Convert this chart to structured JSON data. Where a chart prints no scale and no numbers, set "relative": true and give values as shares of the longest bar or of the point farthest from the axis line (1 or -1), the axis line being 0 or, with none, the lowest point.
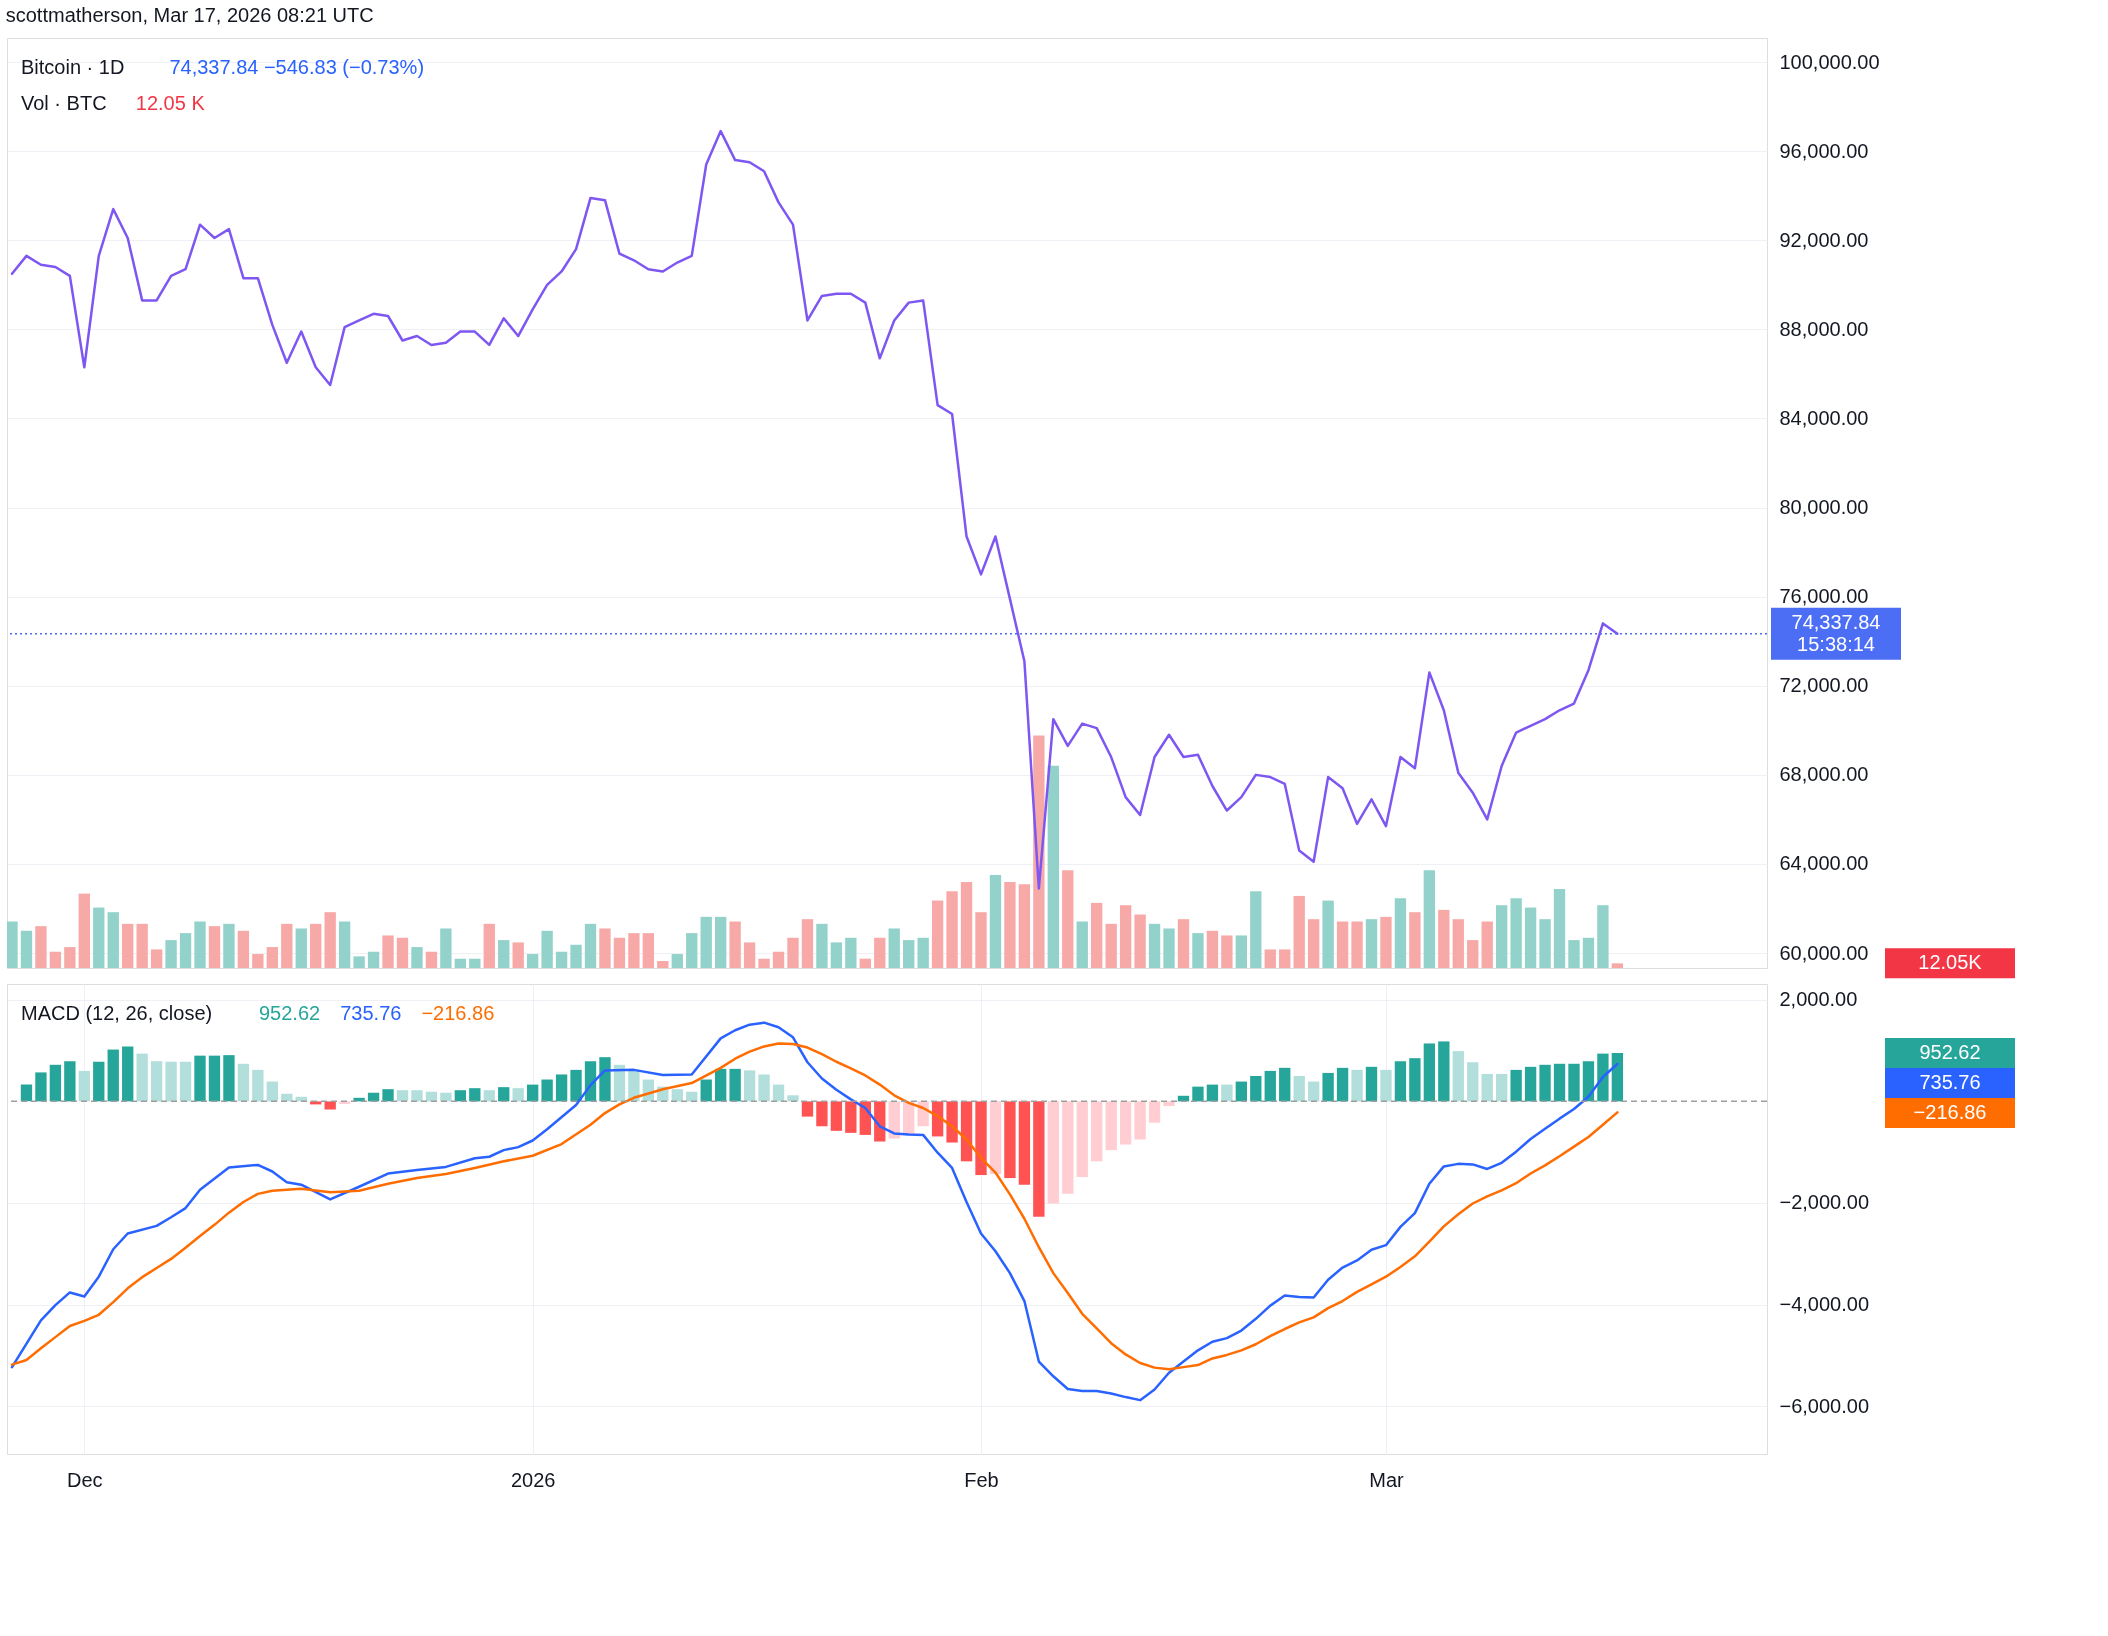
{
  "chart_data": [
    {
      "type": "line",
      "title": "Bitcoin · 1D",
      "subtitle": "74,337.84  −546.83 (−0.73%)",
      "annotations": [
        "scottmatherson, Mar 17, 2026 08:21 UTC",
        "15:38:14"
      ],
      "x": [
        "2025-11-26",
        "2025-11-27",
        "2025-11-28",
        "2025-11-29",
        "2025-11-30",
        "2025-12-01",
        "2025-12-02",
        "2025-12-03",
        "2025-12-04",
        "2025-12-05",
        "2025-12-06",
        "2025-12-07",
        "2025-12-08",
        "2025-12-09",
        "2025-12-10",
        "2025-12-11",
        "2025-12-12",
        "2025-12-13",
        "2025-12-14",
        "2025-12-15",
        "2025-12-16",
        "2025-12-17",
        "2025-12-18",
        "2025-12-19",
        "2025-12-20",
        "2025-12-21",
        "2025-12-22",
        "2025-12-23",
        "2025-12-24",
        "2025-12-25",
        "2025-12-26",
        "2025-12-27",
        "2025-12-28",
        "2025-12-29",
        "2025-12-30",
        "2025-12-31",
        "2026-01-01",
        "2026-01-02",
        "2026-01-03",
        "2026-01-04",
        "2026-01-05",
        "2026-01-06",
        "2026-01-07",
        "2026-01-08",
        "2026-01-09",
        "2026-01-10",
        "2026-01-11",
        "2026-01-12",
        "2026-01-13",
        "2026-01-14",
        "2026-01-15",
        "2026-01-16",
        "2026-01-17",
        "2026-01-18",
        "2026-01-19",
        "2026-01-20",
        "2026-01-21",
        "2026-01-22",
        "2026-01-23",
        "2026-01-24",
        "2026-01-25",
        "2026-01-26",
        "2026-01-27",
        "2026-01-28",
        "2026-01-29",
        "2026-01-30",
        "2026-01-31",
        "2026-02-01",
        "2026-02-02",
        "2026-02-03",
        "2026-02-04",
        "2026-02-05",
        "2026-02-06",
        "2026-02-07",
        "2026-02-08",
        "2026-02-09",
        "2026-02-10",
        "2026-02-11",
        "2026-02-12",
        "2026-02-13",
        "2026-02-14",
        "2026-02-15",
        "2026-02-16",
        "2026-02-17",
        "2026-02-18",
        "2026-02-19",
        "2026-02-20",
        "2026-02-21",
        "2026-02-22",
        "2026-02-23",
        "2026-02-24",
        "2026-02-25",
        "2026-02-26",
        "2026-02-27",
        "2026-02-28",
        "2026-03-01",
        "2026-03-02",
        "2026-03-03",
        "2026-03-04",
        "2026-03-05",
        "2026-03-06",
        "2026-03-07",
        "2026-03-08",
        "2026-03-09",
        "2026-03-10",
        "2026-03-11",
        "2026-03-12",
        "2026-03-13",
        "2026-03-14",
        "2026-03-15",
        "2026-03-16",
        "2026-03-17"
      ],
      "color": "#7e57f2",
      "values": [
        90500,
        91300,
        90900,
        90800,
        90400,
        86300,
        91300,
        93400,
        92100,
        89300,
        89300,
        90400,
        90700,
        92700,
        92100,
        92500,
        90300,
        90300,
        88200,
        86500,
        87900,
        86300,
        85500,
        88100,
        88400,
        88700,
        88600,
        87500,
        87700,
        87300,
        87400,
        87900,
        87900,
        87300,
        88500,
        87700,
        88900,
        90000,
        90600,
        91600,
        93900,
        93800,
        91400,
        91100,
        90700,
        90600,
        91000,
        91300,
        95400,
        96900,
        95600,
        95500,
        95100,
        93700,
        92700,
        88400,
        89500,
        89600,
        89600,
        89200,
        86700,
        88400,
        89200,
        89300,
        84600,
        84200,
        78700,
        77000,
        78700,
        75900,
        73100,
        62900,
        70500,
        69300,
        70300,
        70100,
        68800,
        67000,
        66200,
        68800,
        69800,
        68800,
        68900,
        67500,
        66400,
        67000,
        68000,
        67900,
        67600,
        64600,
        64100,
        67900,
        67400,
        65800,
        66900,
        65700,
        68800,
        68300,
        72600,
        70900,
        68100,
        67200,
        66000,
        68400,
        69900,
        70200,
        70500,
        70900,
        71200,
        72700,
        74800,
        74337.84
      ],
      "xlim": [
        "2025-11-26",
        "2026-03-27"
      ],
      "xticks": [
        {
          "value": "2025-12-01",
          "label": null
        },
        {
          "value": "2026-01-01",
          "label": null
        },
        {
          "value": "2026-02-01",
          "label": null
        },
        {
          "value": "2026-03-01",
          "label": null
        }
      ],
      "ylim": [
        59330,
        101080
      ],
      "yticks": [
        {
          "value": 60000,
          "label": "60,000.00"
        },
        {
          "value": 64000,
          "label": "64,000.00"
        },
        {
          "value": 68000,
          "label": "68,000.00"
        },
        {
          "value": 72000,
          "label": "72,000.00"
        },
        {
          "value": 76000,
          "label": "76,000.00"
        },
        {
          "value": 80000,
          "label": "80,000.00"
        },
        {
          "value": 84000,
          "label": "84,000.00"
        },
        {
          "value": 88000,
          "label": "88,000.00"
        },
        {
          "value": 92000,
          "label": "92,000.00"
        },
        {
          "value": 96000,
          "label": "96,000.00"
        },
        {
          "value": 100000,
          "label": "100,000.00"
        }
      ],
      "ref_lines": [
        {
          "axis": "y",
          "value": 74337.84,
          "label": "74,337.84",
          "color": "#4c6ef5",
          "line_style": "dotted"
        }
      ],
      "tick_labels": "y",
      "grid": true
    },
    {
      "type": "bar",
      "relative": true,
      "title": "Vol · BTC",
      "subtitle": "12.05 K",
      "annotations": [
        "12.05K"
      ],
      "xlim": [
        "2025-11-26",
        "2026-03-27"
      ],
      "xticks": [
        {
          "value": "2025-12-01",
          "label": null
        },
        {
          "value": "2026-01-01",
          "label": null
        },
        {
          "value": "2026-02-01",
          "label": null
        },
        {
          "value": "2026-03-01",
          "label": null
        }
      ],
      "tick_labels": false,
      "x": [
        "2025-11-26",
        "2025-11-27",
        "2025-11-28",
        "2025-11-29",
        "2025-11-30",
        "2025-12-01",
        "2025-12-02",
        "2025-12-03",
        "2025-12-04",
        "2025-12-05",
        "2025-12-06",
        "2025-12-07",
        "2025-12-08",
        "2025-12-09",
        "2025-12-10",
        "2025-12-11",
        "2025-12-12",
        "2025-12-13",
        "2025-12-14",
        "2025-12-15",
        "2025-12-16",
        "2025-12-17",
        "2025-12-18",
        "2025-12-19",
        "2025-12-20",
        "2025-12-21",
        "2025-12-22",
        "2025-12-23",
        "2025-12-24",
        "2025-12-25",
        "2025-12-26",
        "2025-12-27",
        "2025-12-28",
        "2025-12-29",
        "2025-12-30",
        "2025-12-31",
        "2026-01-01",
        "2026-01-02",
        "2026-01-03",
        "2026-01-04",
        "2026-01-05",
        "2026-01-06",
        "2026-01-07",
        "2026-01-08",
        "2026-01-09",
        "2026-01-10",
        "2026-01-11",
        "2026-01-12",
        "2026-01-13",
        "2026-01-14",
        "2026-01-15",
        "2026-01-16",
        "2026-01-17",
        "2026-01-18",
        "2026-01-19",
        "2026-01-20",
        "2026-01-21",
        "2026-01-22",
        "2026-01-23",
        "2026-01-24",
        "2026-01-25",
        "2026-01-26",
        "2026-01-27",
        "2026-01-28",
        "2026-01-29",
        "2026-01-30",
        "2026-01-31",
        "2026-02-01",
        "2026-02-02",
        "2026-02-03",
        "2026-02-04",
        "2026-02-05",
        "2026-02-06",
        "2026-02-07",
        "2026-02-08",
        "2026-02-09",
        "2026-02-10",
        "2026-02-11",
        "2026-02-12",
        "2026-02-13",
        "2026-02-14",
        "2026-02-15",
        "2026-02-16",
        "2026-02-17",
        "2026-02-18",
        "2026-02-19",
        "2026-02-20",
        "2026-02-21",
        "2026-02-22",
        "2026-02-23",
        "2026-02-24",
        "2026-02-25",
        "2026-02-26",
        "2026-02-27",
        "2026-02-28",
        "2026-03-01",
        "2026-03-02",
        "2026-03-03",
        "2026-03-04",
        "2026-03-05",
        "2026-03-06",
        "2026-03-07",
        "2026-03-08",
        "2026-03-09",
        "2026-03-10",
        "2026-03-11",
        "2026-03-12",
        "2026-03-13",
        "2026-03-14",
        "2026-03-15",
        "2026-03-16",
        "2026-03-17"
      ],
      "values": [
        0.2,
        0.16,
        0.18,
        0.07,
        0.09,
        0.32,
        0.26,
        0.24,
        0.19,
        0.19,
        0.08,
        0.12,
        0.15,
        0.2,
        0.18,
        0.19,
        0.16,
        0.06,
        0.09,
        0.19,
        0.17,
        0.19,
        0.24,
        0.2,
        0.05,
        0.07,
        0.14,
        0.13,
        0.09,
        0.07,
        0.17,
        0.04,
        0.04,
        0.19,
        0.12,
        0.11,
        0.06,
        0.16,
        0.07,
        0.1,
        0.19,
        0.17,
        0.13,
        0.15,
        0.15,
        0.03,
        0.06,
        0.15,
        0.22,
        0.22,
        0.2,
        0.11,
        0.04,
        0.07,
        0.13,
        0.21,
        0.19,
        0.11,
        0.13,
        0.04,
        0.13,
        0.17,
        0.12,
        0.13,
        0.29,
        0.33,
        0.37,
        0.24,
        0.4,
        0.37,
        0.36,
        1,
        0.87,
        0.42,
        0.2,
        0.28,
        0.19,
        0.27,
        0.23,
        0.19,
        0.17,
        0.21,
        0.15,
        0.16,
        0.14,
        0.14,
        0.33,
        0.08,
        0.08,
        0.31,
        0.21,
        0.29,
        0.2,
        0.2,
        0.21,
        0.22,
        0.3,
        0.24,
        0.42,
        0.25,
        0.21,
        0.12,
        0.2,
        0.27,
        0.3,
        0.26,
        0.21,
        0.34,
        0.12,
        0.13,
        0.27,
        0.02
      ],
      "colors": [
        "#92d2ca",
        "#92d2ca",
        "#f7a9a7",
        "#f7a9a7",
        "#f7a9a7",
        "#f7a9a7",
        "#92d2ca",
        "#92d2ca",
        "#f7a9a7",
        "#f7a9a7",
        "#f7a9a7",
        "#92d2ca",
        "#92d2ca",
        "#92d2ca",
        "#f7a9a7",
        "#92d2ca",
        "#f7a9a7",
        "#f7a9a7",
        "#f7a9a7",
        "#f7a9a7",
        "#92d2ca",
        "#f7a9a7",
        "#f7a9a7",
        "#92d2ca",
        "#92d2ca",
        "#92d2ca",
        "#f7a9a7",
        "#f7a9a7",
        "#92d2ca",
        "#f7a9a7",
        "#92d2ca",
        "#92d2ca",
        "#92d2ca",
        "#f7a9a7",
        "#92d2ca",
        "#f7a9a7",
        "#92d2ca",
        "#92d2ca",
        "#92d2ca",
        "#92d2ca",
        "#92d2ca",
        "#f7a9a7",
        "#f7a9a7",
        "#f7a9a7",
        "#f7a9a7",
        "#f7a9a7",
        "#92d2ca",
        "#92d2ca",
        "#92d2ca",
        "#92d2ca",
        "#f7a9a7",
        "#f7a9a7",
        "#f7a9a7",
        "#f7a9a7",
        "#f7a9a7",
        "#f7a9a7",
        "#92d2ca",
        "#92d2ca",
        "#92d2ca",
        "#f7a9a7",
        "#f7a9a7",
        "#92d2ca",
        "#92d2ca",
        "#92d2ca",
        "#f7a9a7",
        "#f7a9a7",
        "#f7a9a7",
        "#f7a9a7",
        "#92d2ca",
        "#f7a9a7",
        "#f7a9a7",
        "#f7a9a7",
        "#92d2ca",
        "#f7a9a7",
        "#92d2ca",
        "#f7a9a7",
        "#f7a9a7",
        "#f7a9a7",
        "#f7a9a7",
        "#92d2ca",
        "#92d2ca",
        "#f7a9a7",
        "#92d2ca",
        "#f7a9a7",
        "#f7a9a7",
        "#92d2ca",
        "#92d2ca",
        "#f7a9a7",
        "#f7a9a7",
        "#f7a9a7",
        "#f7a9a7",
        "#92d2ca",
        "#f7a9a7",
        "#f7a9a7",
        "#92d2ca",
        "#f7a9a7",
        "#92d2ca",
        "#f7a9a7",
        "#92d2ca",
        "#f7a9a7",
        "#f7a9a7",
        "#f7a9a7",
        "#f7a9a7",
        "#92d2ca",
        "#92d2ca",
        "#92d2ca",
        "#92d2ca",
        "#92d2ca",
        "#92d2ca",
        "#92d2ca",
        "#92d2ca",
        "#f7a9a7"
      ]
    },
    {
      "type": "bar",
      "title": "MACD (12, 26, close)",
      "annotations": [
        "952.62",
        "735.76",
        "−216.86"
      ],
      "x": [
        "2025-11-27",
        "2025-11-28",
        "2025-11-29",
        "2025-11-30",
        "2025-12-01",
        "2025-12-02",
        "2025-12-03",
        "2025-12-04",
        "2025-12-05",
        "2025-12-06",
        "2025-12-07",
        "2025-12-08",
        "2025-12-09",
        "2025-12-10",
        "2025-12-11",
        "2025-12-12",
        "2025-12-13",
        "2025-12-14",
        "2025-12-15",
        "2025-12-16",
        "2025-12-17",
        "2025-12-18",
        "2025-12-19",
        "2025-12-20",
        "2025-12-21",
        "2025-12-22",
        "2025-12-23",
        "2025-12-24",
        "2025-12-25",
        "2025-12-26",
        "2025-12-27",
        "2025-12-28",
        "2025-12-29",
        "2025-12-30",
        "2025-12-31",
        "2026-01-01",
        "2026-01-02",
        "2026-01-03",
        "2026-01-04",
        "2026-01-05",
        "2026-01-06",
        "2026-01-07",
        "2026-01-08",
        "2026-01-09",
        "2026-01-10",
        "2026-01-11",
        "2026-01-12",
        "2026-01-13",
        "2026-01-14",
        "2026-01-15",
        "2026-01-16",
        "2026-01-17",
        "2026-01-18",
        "2026-01-19",
        "2026-01-20",
        "2026-01-21",
        "2026-01-22",
        "2026-01-23",
        "2026-01-24",
        "2026-01-25",
        "2026-01-26",
        "2026-01-27",
        "2026-01-28",
        "2026-01-29",
        "2026-01-30",
        "2026-01-31",
        "2026-02-01",
        "2026-02-02",
        "2026-02-03",
        "2026-02-04",
        "2026-02-05",
        "2026-02-06",
        "2026-02-07",
        "2026-02-08",
        "2026-02-09",
        "2026-02-10",
        "2026-02-11",
        "2026-02-12",
        "2026-02-13",
        "2026-02-14",
        "2026-02-15",
        "2026-02-16",
        "2026-02-17",
        "2026-02-18",
        "2026-02-19",
        "2026-02-20",
        "2026-02-21",
        "2026-02-22",
        "2026-02-23",
        "2026-02-24",
        "2026-02-25",
        "2026-02-26",
        "2026-02-27",
        "2026-02-28",
        "2026-03-01",
        "2026-03-02",
        "2026-03-03",
        "2026-03-04",
        "2026-03-05",
        "2026-03-06",
        "2026-03-07",
        "2026-03-08",
        "2026-03-09",
        "2026-03-10",
        "2026-03-11",
        "2026-03-12",
        "2026-03-13",
        "2026-03-14",
        "2026-03-15",
        "2026-03-16",
        "2026-03-17"
      ],
      "series": [
        {
          "type": "bar",
          "values": [
            330,
            570,
            720,
            790,
            600,
            780,
            1020,
            1080,
            940,
            790,
            780,
            780,
            900,
            900,
            910,
            740,
            620,
            390,
            150,
            90,
            -60,
            -160,
            -50,
            70,
            170,
            240,
            220,
            220,
            190,
            170,
            220,
            260,
            220,
            280,
            260,
            330,
            430,
            530,
            620,
            790,
            870,
            720,
            620,
            430,
            290,
            240,
            190,
            430,
            640,
            640,
            610,
            530,
            330,
            120,
            -300,
            -490,
            -580,
            -620,
            -660,
            -790,
            -730,
            -650,
            -490,
            -690,
            -810,
            -1180,
            -1450,
            -1430,
            -1510,
            -1640,
            -2270,
            -2010,
            -1820,
            -1490,
            -1180,
            -960,
            -850,
            -750,
            -420,
            -90,
            110,
            290,
            330,
            330,
            390,
            500,
            600,
            660,
            500,
            390,
            560,
            660,
            620,
            680,
            620,
            790,
            850,
            1140,
            1180,
            990,
            770,
            540,
            540,
            620,
            680,
            720,
            740,
            740,
            790,
            940,
            952.62
          ],
          "colors": [
            "#26a69a",
            "#26a69a",
            "#26a69a",
            "#26a69a",
            "#b2dfdb",
            "#26a69a",
            "#26a69a",
            "#26a69a",
            "#b2dfdb",
            "#b2dfdb",
            "#b2dfdb",
            "#b2dfdb",
            "#26a69a",
            "#26a69a",
            "#26a69a",
            "#b2dfdb",
            "#b2dfdb",
            "#b2dfdb",
            "#b2dfdb",
            "#b2dfdb",
            "#ff5252",
            "#ff5252",
            "#ffcdd2",
            "#26a69a",
            "#26a69a",
            "#26a69a",
            "#b2dfdb",
            "#b2dfdb",
            "#b2dfdb",
            "#b2dfdb",
            "#26a69a",
            "#26a69a",
            "#b2dfdb",
            "#26a69a",
            "#b2dfdb",
            "#26a69a",
            "#26a69a",
            "#26a69a",
            "#26a69a",
            "#26a69a",
            "#26a69a",
            "#b2dfdb",
            "#b2dfdb",
            "#b2dfdb",
            "#b2dfdb",
            "#b2dfdb",
            "#b2dfdb",
            "#26a69a",
            "#26a69a",
            "#26a69a",
            "#b2dfdb",
            "#b2dfdb",
            "#b2dfdb",
            "#b2dfdb",
            "#ff5252",
            "#ff5252",
            "#ff5252",
            "#ff5252",
            "#ff5252",
            "#ff5252",
            "#ffcdd2",
            "#ffcdd2",
            "#ffcdd2",
            "#ff5252",
            "#ff5252",
            "#ff5252",
            "#ff5252",
            "#ffcdd2",
            "#ff5252",
            "#ff5252",
            "#ff5252",
            "#ffcdd2",
            "#ffcdd2",
            "#ffcdd2",
            "#ffcdd2",
            "#ffcdd2",
            "#ffcdd2",
            "#ffcdd2",
            "#ffcdd2",
            "#ffcdd2",
            "#26a69a",
            "#26a69a",
            "#26a69a",
            "#b2dfdb",
            "#26a69a",
            "#26a69a",
            "#26a69a",
            "#26a69a",
            "#b2dfdb",
            "#b2dfdb",
            "#26a69a",
            "#26a69a",
            "#b2dfdb",
            "#26a69a",
            "#b2dfdb",
            "#26a69a",
            "#26a69a",
            "#26a69a",
            "#26a69a",
            "#b2dfdb",
            "#b2dfdb",
            "#b2dfdb",
            "#b2dfdb",
            "#26a69a",
            "#26a69a",
            "#26a69a",
            "#26a69a",
            "#26a69a",
            "#26a69a",
            "#26a69a",
            "#26a69a"
          ]
        },
        {
          "type": "line",
          "color": "#2962ff",
          "x": [
            "2025-11-26",
            "2025-11-28",
            "2025-11-29",
            "2025-11-30",
            "2025-12-01",
            "2025-12-02",
            "2025-12-03",
            "2025-12-04",
            "2025-12-06",
            "2025-12-07",
            "2025-12-08",
            "2025-12-09",
            "2025-12-11",
            "2025-12-13",
            "2025-12-14",
            "2025-12-15",
            "2025-12-16",
            "2025-12-18",
            "2025-12-20",
            "2025-12-22",
            "2025-12-24",
            "2025-12-26",
            "2025-12-28",
            "2025-12-29",
            "2025-12-30",
            "2025-12-31",
            "2026-01-01",
            "2026-01-02",
            "2026-01-04",
            "2026-01-05",
            "2026-01-06",
            "2026-01-08",
            "2026-01-10",
            "2026-01-12",
            "2026-01-14",
            "2026-01-15",
            "2026-01-16",
            "2026-01-17",
            "2026-01-18",
            "2026-01-19",
            "2026-01-20",
            "2026-01-21",
            "2026-01-22",
            "2026-01-23",
            "2026-01-24",
            "2026-01-25",
            "2026-01-26",
            "2026-01-27",
            "2026-01-28",
            "2026-01-29",
            "2026-01-30",
            "2026-01-31",
            "2026-02-01",
            "2026-02-02",
            "2026-02-03",
            "2026-02-04",
            "2026-02-05",
            "2026-02-06",
            "2026-02-07",
            "2026-02-08",
            "2026-02-09",
            "2026-02-10",
            "2026-02-11",
            "2026-02-12",
            "2026-02-13",
            "2026-02-14",
            "2026-02-15",
            "2026-02-16",
            "2026-02-17",
            "2026-02-18",
            "2026-02-19",
            "2026-02-20",
            "2026-02-21",
            "2026-02-22",
            "2026-02-23",
            "2026-02-24",
            "2026-02-25",
            "2026-02-26",
            "2026-02-27",
            "2026-02-28",
            "2026-03-01",
            "2026-03-02",
            "2026-03-03",
            "2026-03-04",
            "2026-03-05",
            "2026-03-06",
            "2026-03-07",
            "2026-03-08",
            "2026-03-09",
            "2026-03-10",
            "2026-03-11",
            "2026-03-12",
            "2026-03-13",
            "2026-03-14",
            "2026-03-15",
            "2026-03-16",
            "2026-03-17"
          ],
          "values": [
            -5230,
            -4310,
            -4010,
            -3760,
            -3840,
            -3450,
            -2910,
            -2600,
            -2450,
            -2280,
            -2100,
            -1740,
            -1300,
            -1250,
            -1380,
            -1590,
            -1640,
            -1930,
            -1680,
            -1420,
            -1350,
            -1290,
            -1120,
            -1090,
            -960,
            -900,
            -770,
            -550,
            -70,
            320,
            610,
            620,
            520,
            530,
            1240,
            1400,
            1510,
            1550,
            1460,
            1260,
            770,
            450,
            230,
            40,
            -130,
            -490,
            -630,
            -650,
            -660,
            -1010,
            -1310,
            -1980,
            -2600,
            -2950,
            -3380,
            -3930,
            -5120,
            -5410,
            -5660,
            -5700,
            -5700,
            -5750,
            -5820,
            -5880,
            -5670,
            -5340,
            -5120,
            -4900,
            -4730,
            -4660,
            -4510,
            -4280,
            -4020,
            -3820,
            -3850,
            -3860,
            -3510,
            -3270,
            -3130,
            -2920,
            -2830,
            -2470,
            -2200,
            -1620,
            -1280,
            -1230,
            -1240,
            -1330,
            -1210,
            -990,
            -740,
            -540,
            -340,
            -150,
            90,
            480,
            735.76
          ]
        },
        {
          "type": "line",
          "color": "#ff6d00",
          "x": [
            "2025-11-26",
            "2025-11-27",
            "2025-11-28",
            "2025-11-29",
            "2025-11-30",
            "2025-12-01",
            "2025-12-02",
            "2025-12-03",
            "2025-12-04",
            "2025-12-05",
            "2025-12-06",
            "2025-12-07",
            "2025-12-08",
            "2025-12-09",
            "2025-12-10",
            "2025-12-11",
            "2025-12-12",
            "2025-12-13",
            "2025-12-14",
            "2025-12-16",
            "2025-12-18",
            "2025-12-20",
            "2025-12-22",
            "2025-12-24",
            "2025-12-26",
            "2025-12-28",
            "2025-12-30",
            "2026-01-01",
            "2026-01-03",
            "2026-01-05",
            "2026-01-06",
            "2026-01-07",
            "2026-01-08",
            "2026-01-10",
            "2026-01-12",
            "2026-01-14",
            "2026-01-15",
            "2026-01-16",
            "2026-01-17",
            "2026-01-18",
            "2026-01-19",
            "2026-01-20",
            "2026-01-21",
            "2026-01-22",
            "2026-01-23",
            "2026-01-24",
            "2026-01-25",
            "2026-01-26",
            "2026-01-27",
            "2026-01-28",
            "2026-01-29",
            "2026-01-30",
            "2026-01-31",
            "2026-02-01",
            "2026-02-02",
            "2026-02-03",
            "2026-02-04",
            "2026-02-05",
            "2026-02-06",
            "2026-02-07",
            "2026-02-08",
            "2026-02-09",
            "2026-02-10",
            "2026-02-11",
            "2026-02-12",
            "2026-02-13",
            "2026-02-14",
            "2026-02-15",
            "2026-02-16",
            "2026-02-17",
            "2026-02-18",
            "2026-02-19",
            "2026-02-20",
            "2026-02-21",
            "2026-02-22",
            "2026-02-23",
            "2026-02-24",
            "2026-02-25",
            "2026-02-26",
            "2026-02-27",
            "2026-02-28",
            "2026-03-01",
            "2026-03-02",
            "2026-03-03",
            "2026-03-04",
            "2026-03-05",
            "2026-03-06",
            "2026-03-07",
            "2026-03-08",
            "2026-03-09",
            "2026-03-10",
            "2026-03-11",
            "2026-03-12",
            "2026-03-13",
            "2026-03-14",
            "2026-03-15",
            "2026-03-16",
            "2026-03-17"
          ],
          "values": [
            -5180,
            -5090,
            -4860,
            -4640,
            -4420,
            -4320,
            -4200,
            -3950,
            -3680,
            -3460,
            -3280,
            -3100,
            -2880,
            -2650,
            -2430,
            -2190,
            -1980,
            -1820,
            -1760,
            -1720,
            -1790,
            -1760,
            -1620,
            -1510,
            -1430,
            -1310,
            -1180,
            -1070,
            -840,
            -460,
            -230,
            -60,
            70,
            240,
            360,
            660,
            840,
            980,
            1080,
            1140,
            1130,
            1060,
            930,
            780,
            650,
            510,
            330,
            120,
            -30,
            -130,
            -290,
            -490,
            -750,
            -1110,
            -1400,
            -1830,
            -2310,
            -2870,
            -3380,
            -3770,
            -4180,
            -4470,
            -4760,
            -4980,
            -5150,
            -5240,
            -5270,
            -5230,
            -5190,
            -5060,
            -4990,
            -4900,
            -4780,
            -4620,
            -4480,
            -4350,
            -4250,
            -4070,
            -3930,
            -3750,
            -3600,
            -3450,
            -3260,
            -3050,
            -2760,
            -2460,
            -2220,
            -2010,
            -1870,
            -1750,
            -1610,
            -1420,
            -1260,
            -1080,
            -890,
            -700,
            -460,
            -216.86
          ]
        }
      ],
      "xlim": [
        "2025-11-26",
        "2026-03-27"
      ],
      "xticks": [
        {
          "value": "2025-12-01",
          "label": "Dec"
        },
        {
          "value": "2026-01-01",
          "label": "2026"
        },
        {
          "value": "2026-02-01",
          "label": "Feb"
        },
        {
          "value": "2026-03-01",
          "label": "Mar"
        }
      ],
      "ylim": [
        -6940,
        2310
      ],
      "yticks": [
        {
          "value": 2000,
          "label": "2,000.00"
        },
        {
          "value": -2000,
          "label": "−2,000.00"
        },
        {
          "value": -4000,
          "label": "−4,000.00"
        },
        {
          "value": -6000,
          "label": "−6,000.00"
        }
      ],
      "ref_lines": [
        {
          "axis": "y",
          "value": 0,
          "color": "#9e9e9e",
          "line_style": "dashed"
        }
      ],
      "grid": true
    }
  ]
}
